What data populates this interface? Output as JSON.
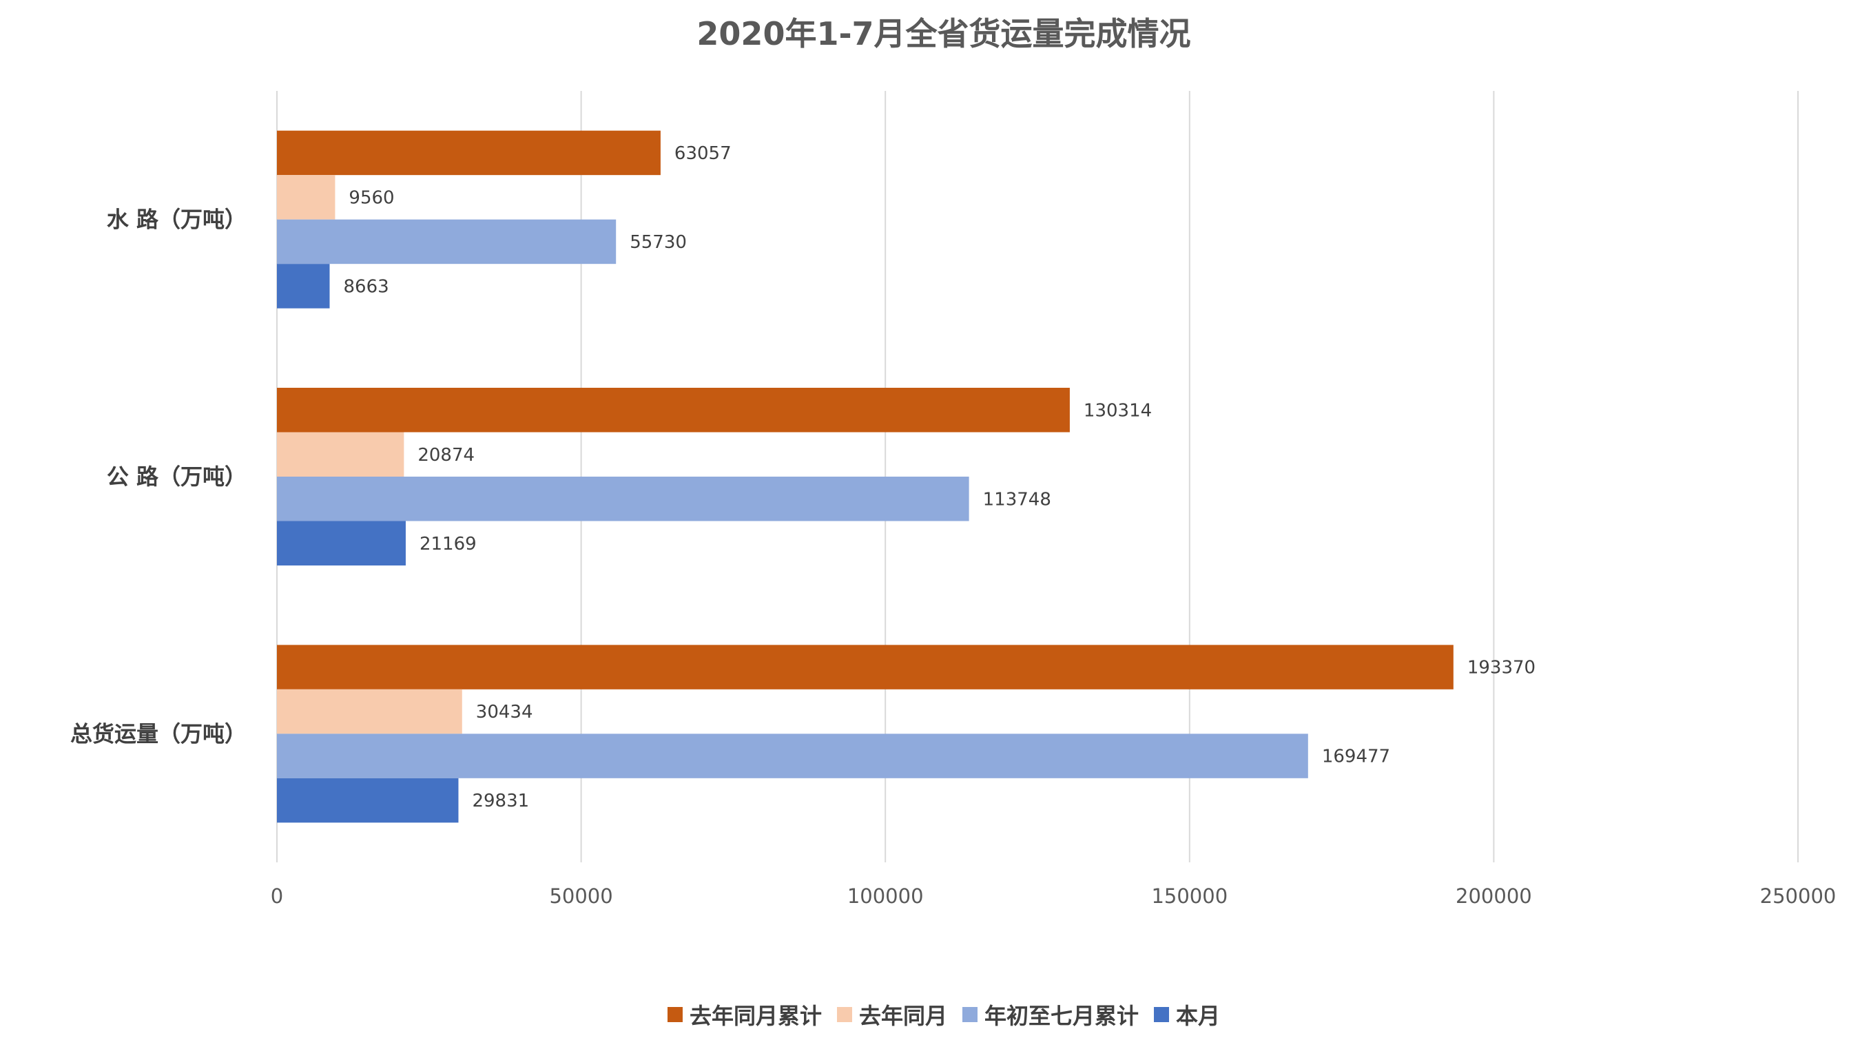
{
  "chart_data": {
    "type": "bar",
    "orientation": "horizontal",
    "title": "2020年1-7月全省货运量完成情况",
    "categories": [
      "水 路（万吨）",
      "公 路（万吨）",
      "总货运量（万吨）"
    ],
    "series": [
      {
        "name": "去年同月累计",
        "color": "#C55A11",
        "values": [
          63057,
          130314,
          193370
        ]
      },
      {
        "name": "去年同月",
        "color": "#F8CBAD",
        "values": [
          9560,
          20874,
          30434
        ]
      },
      {
        "name": "年初至七月累计",
        "color": "#8FAADC",
        "values": [
          55730,
          113748,
          169477
        ]
      },
      {
        "name": "本月",
        "color": "#4472C4",
        "values": [
          8663,
          21169,
          29831
        ]
      }
    ],
    "xlim": [
      0,
      250000
    ],
    "xticks": [
      0,
      50000,
      100000,
      150000,
      200000,
      250000
    ],
    "grid": true,
    "legend_position": "bottom"
  }
}
